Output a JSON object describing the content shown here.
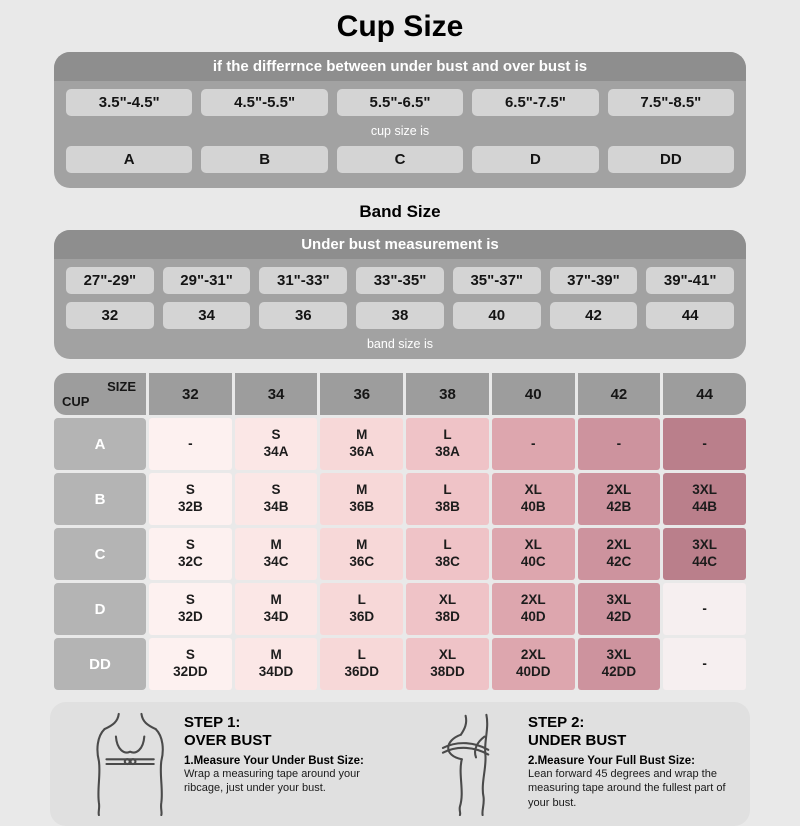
{
  "page": {
    "title": "Cup Size",
    "band_size_title": "Band Size"
  },
  "colors": {
    "page_bg": "#e9e9e9",
    "panel": "#a2a2a2",
    "panel_header": "#8e8e8e",
    "panel_cell": "#d4d4d4",
    "matrix_header_bg": "#9d9d9d",
    "row_label_bg": "#b4b4b4",
    "empty_cell": "#f6eff0",
    "columns": [
      "#fdf1f0",
      "#fbe7e6",
      "#f7d8d8",
      "#efc3c7",
      "#dda6ae",
      "#cd939e",
      "#ba7f8b"
    ]
  },
  "cup_size_panel": {
    "header": "if the differrnce between under bust and over bust is",
    "ranges": [
      "3.5\"-4.5\"",
      "4.5\"-5.5\"",
      "5.5\"-6.5\"",
      "6.5\"-7.5\"",
      "7.5\"-8.5\""
    ],
    "middle_label": "cup size is",
    "cups": [
      "A",
      "B",
      "C",
      "D",
      "DD"
    ]
  },
  "band_size_panel": {
    "header": "Under bust measurement is",
    "ranges": [
      "27\"-29\"",
      "29\"-31\"",
      "31\"-33\"",
      "33\"-35\"",
      "35\"-37\"",
      "37\"-39\"",
      "39\"-41\""
    ],
    "bands": [
      "32",
      "34",
      "36",
      "38",
      "40",
      "42",
      "44"
    ],
    "bottom_label": "band size is"
  },
  "size_matrix": {
    "corner": {
      "top": "SIZE",
      "bottom": "CUP"
    },
    "columns": [
      "32",
      "34",
      "36",
      "38",
      "40",
      "42",
      "44"
    ],
    "rows": [
      {
        "cup": "A",
        "cells": [
          {
            "size": "-",
            "code": ""
          },
          {
            "size": "S",
            "code": "34A"
          },
          {
            "size": "M",
            "code": "36A"
          },
          {
            "size": "L",
            "code": "38A"
          },
          {
            "size": "-",
            "code": ""
          },
          {
            "size": "-",
            "code": ""
          },
          {
            "size": "-",
            "code": ""
          }
        ]
      },
      {
        "cup": "B",
        "cells": [
          {
            "size": "S",
            "code": "32B"
          },
          {
            "size": "S",
            "code": "34B"
          },
          {
            "size": "M",
            "code": "36B"
          },
          {
            "size": "L",
            "code": "38B"
          },
          {
            "size": "XL",
            "code": "40B"
          },
          {
            "size": "2XL",
            "code": "42B"
          },
          {
            "size": "3XL",
            "code": "44B"
          }
        ]
      },
      {
        "cup": "C",
        "cells": [
          {
            "size": "S",
            "code": "32C"
          },
          {
            "size": "M",
            "code": "34C"
          },
          {
            "size": "M",
            "code": "36C"
          },
          {
            "size": "L",
            "code": "38C"
          },
          {
            "size": "XL",
            "code": "40C"
          },
          {
            "size": "2XL",
            "code": "42C"
          },
          {
            "size": "3XL",
            "code": "44C"
          }
        ]
      },
      {
        "cup": "D",
        "cells": [
          {
            "size": "S",
            "code": "32D"
          },
          {
            "size": "M",
            "code": "34D"
          },
          {
            "size": "L",
            "code": "36D"
          },
          {
            "size": "XL",
            "code": "38D"
          },
          {
            "size": "2XL",
            "code": "40D"
          },
          {
            "size": "3XL",
            "code": "42D"
          },
          {
            "size": "-",
            "code": "",
            "light": true
          }
        ]
      },
      {
        "cup": "DD",
        "cells": [
          {
            "size": "S",
            "code": "32DD"
          },
          {
            "size": "M",
            "code": "34DD"
          },
          {
            "size": "L",
            "code": "36DD"
          },
          {
            "size": "XL",
            "code": "38DD"
          },
          {
            "size": "2XL",
            "code": "40DD"
          },
          {
            "size": "3XL",
            "code": "42DD"
          },
          {
            "size": "-",
            "code": "",
            "light": true
          }
        ]
      }
    ]
  },
  "steps": [
    {
      "step": "STEP 1:",
      "title": "OVER BUST",
      "measure_title": "1.Measure Your Under Bust Size:",
      "text": "Wrap a measuring tape around your ribcage, just under your bust."
    },
    {
      "step": "STEP 2:",
      "title": "UNDER BUST",
      "measure_title": "2.Measure Your Full Bust Size:",
      "text": "Lean forward 45 degrees and wrap the measuring tape around the fullest part of your bust."
    }
  ],
  "chart_data": [
    {
      "type": "table",
      "title": "Cup Size",
      "columns": [
        "Difference between under bust and over bust",
        "Cup size"
      ],
      "rows": [
        [
          "3.5\"-4.5\"",
          "A"
        ],
        [
          "4.5\"-5.5\"",
          "B"
        ],
        [
          "5.5\"-6.5\"",
          "C"
        ],
        [
          "6.5\"-7.5\"",
          "D"
        ],
        [
          "7.5\"-8.5\"",
          "DD"
        ]
      ]
    },
    {
      "type": "table",
      "title": "Band Size",
      "columns": [
        "Under bust measurement",
        "Band size"
      ],
      "rows": [
        [
          "27\"-29\"",
          "32"
        ],
        [
          "29\"-31\"",
          "34"
        ],
        [
          "31\"-33\"",
          "36"
        ],
        [
          "33\"-35\"",
          "38"
        ],
        [
          "35\"-37\"",
          "40"
        ],
        [
          "37\"-39\"",
          "42"
        ],
        [
          "39\"-41\"",
          "44"
        ]
      ]
    },
    {
      "type": "table",
      "title": "Size by band (columns) and cup (rows)",
      "columns": [
        "CUP",
        "32",
        "34",
        "36",
        "38",
        "40",
        "42",
        "44"
      ],
      "rows": [
        [
          "A",
          "-",
          "S 34A",
          "M 36A",
          "L 38A",
          "-",
          "-",
          "-"
        ],
        [
          "B",
          "S 32B",
          "S 34B",
          "M 36B",
          "L 38B",
          "XL 40B",
          "2XL 42B",
          "3XL 44B"
        ],
        [
          "C",
          "S 32C",
          "M 34C",
          "M 36C",
          "L 38C",
          "XL 40C",
          "2XL 42C",
          "3XL 44C"
        ],
        [
          "D",
          "S 32D",
          "M 34D",
          "L 36D",
          "XL 38D",
          "2XL 40D",
          "3XL 42D",
          "-"
        ],
        [
          "DD",
          "S 32DD",
          "M 34DD",
          "L 36DD",
          "XL 38DD",
          "2XL 40DD",
          "3XL 42DD",
          "-"
        ]
      ]
    }
  ]
}
